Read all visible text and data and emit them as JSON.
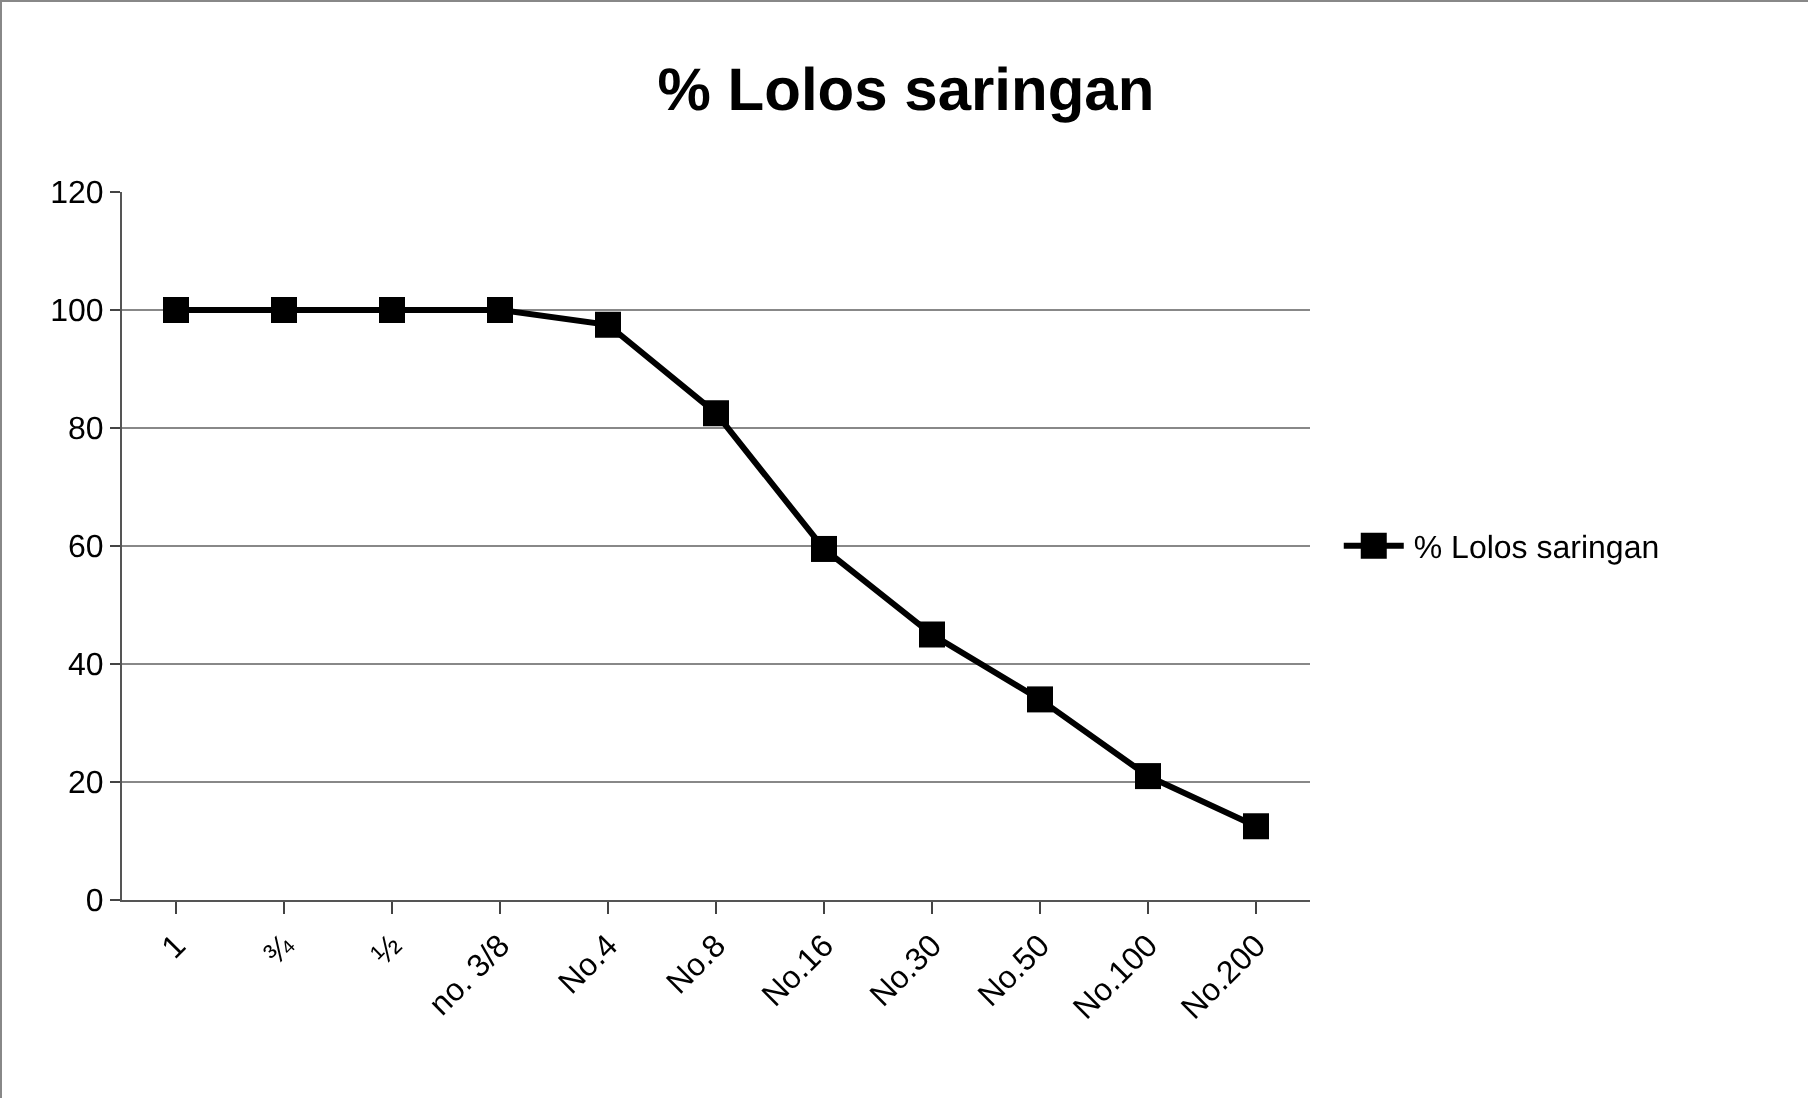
{
  "chart_data": {
    "type": "line",
    "title": "% Lolos saringan",
    "categories": [
      "1",
      "¾",
      "½",
      "no. 3/8",
      "No.4",
      "No.8",
      "No.16",
      "No.30",
      "No.50",
      "No.100",
      "No.200"
    ],
    "series": [
      {
        "name": "% Lolos saringan",
        "color": "#000000",
        "values": [
          100,
          100,
          100,
          100,
          97.5,
          82.5,
          59.5,
          45,
          34,
          21,
          12.5
        ]
      }
    ],
    "ylim": [
      0,
      120
    ],
    "yticks": [
      0,
      20,
      40,
      60,
      80,
      100,
      120
    ],
    "grid": "y",
    "legend": "right",
    "marker": "square",
    "line_style": "solid"
  }
}
